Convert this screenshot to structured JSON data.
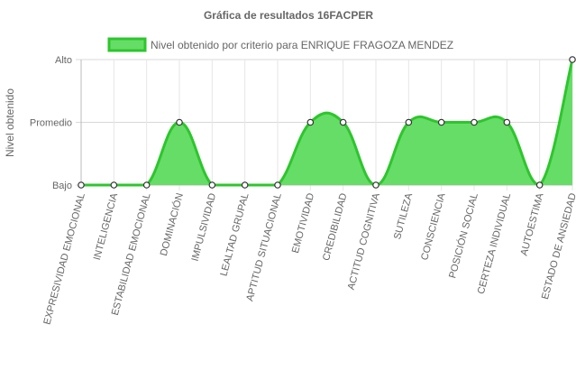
{
  "chart_data": {
    "type": "area",
    "title": "Gráfica de resultados 16FACPER",
    "ylabel": "Nivel obtenido",
    "xlabel": "",
    "y_levels": [
      "Bajo",
      "Promedio",
      "Alto"
    ],
    "ylim": [
      0,
      2
    ],
    "grid": true,
    "legend_position": "top",
    "categories": [
      "EXPRESIVIDAD EMOCIONAL",
      "INTELIGENCIA",
      "ESTABILIDAD EMOCIONAL",
      "DOMINACIÓN",
      "IMPULSIVIDAD",
      "LEALTAD GRUPAL",
      "APTITUD SITUACIONAL",
      "EMOTIVIDAD",
      "CREDIBILIDAD",
      "ACTITUD COGNITIVA",
      "SUTILEZA",
      "CONSCIENCIA",
      "POSICIÓN SOCIAL",
      "CERTEZA INDIVIDUAL",
      "AUTOESTIMA",
      "ESTADO DE ANSIEDAD"
    ],
    "series": [
      {
        "name": "Nivel obtenido por criterio para ENRIQUE FRAGOZA MENDEZ",
        "values": [
          0,
          0,
          0,
          1,
          0,
          0,
          0,
          1,
          1,
          0,
          1,
          1,
          1,
          1,
          0,
          2
        ],
        "fill_color": "#66dd66",
        "line_color": "#2dc62d"
      }
    ]
  }
}
